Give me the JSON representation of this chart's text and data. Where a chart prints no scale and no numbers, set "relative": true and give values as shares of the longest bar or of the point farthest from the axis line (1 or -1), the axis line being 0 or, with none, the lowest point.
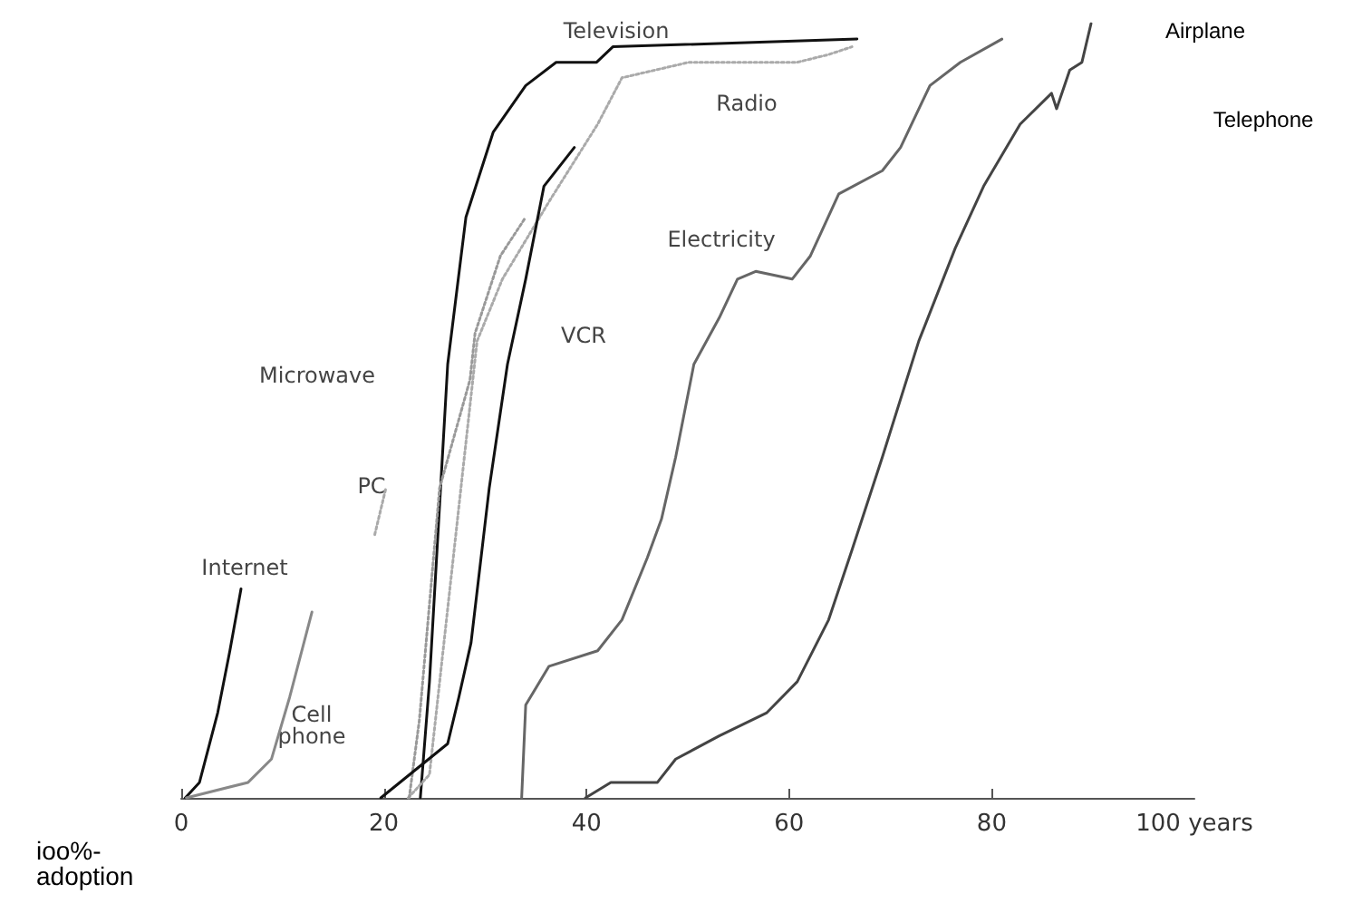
{
  "chart_data": {
    "type": "line",
    "relative": true,
    "xlabel": null,
    "ylabel": "ioo%-\nadoption",
    "xlim": [
      0,
      100
    ],
    "xticks": [
      {
        "value": 0,
        "label": "0"
      },
      20,
      40,
      60,
      80,
      {
        "value": 100,
        "label": "100 years"
      }
    ],
    "grid": false,
    "marker": "none",
    "series": [
      {
        "color": "#111111",
        "line_style": "solid",
        "x": [
          23.6,
          24.5,
          26.3,
          28.1,
          30.8,
          34,
          37,
          41,
          42.6,
          66.7
        ],
        "values": [
          0,
          0.15,
          0.56,
          0.75,
          0.86,
          0.92,
          0.95,
          0.95,
          0.97,
          0.98
        ]
      },
      {
        "color": "#aaaaaa",
        "line_style": "dotted",
        "x": [
          22.4,
          24.5,
          29.2,
          31.7,
          36.3,
          41.1,
          43.5,
          50.1,
          56,
          60.8,
          63.9,
          66.2
        ],
        "values": [
          0,
          0.03,
          0.59,
          0.67,
          0.77,
          0.87,
          0.93,
          0.95,
          0.95,
          0.95,
          0.96,
          0.97
        ]
      },
      {
        "color": "#999999",
        "line_style": "dotted",
        "x": [
          22.5,
          23.5,
          25.5,
          28.5,
          29,
          31.5,
          34
        ],
        "values": [
          0,
          0.1,
          0.4,
          0.54,
          0.6,
          0.7,
          0.75
        ]
      },
      {
        "color": "#111111",
        "line_style": "solid",
        "x": [
          19.7,
          26.3,
          27.4,
          28.6,
          30.4,
          32.2,
          34,
          35.8,
          38.8
        ],
        "values": [
          0,
          0.07,
          0.13,
          0.2,
          0.4,
          0.56,
          0.67,
          0.79,
          0.84
        ]
      },
      {
        "color": "#aaaaaa",
        "line_style": "dotted",
        "x": [
          19.1,
          20.2
        ],
        "values": [
          0.34,
          0.4
        ]
      },
      {
        "color": "#111111",
        "line_style": "solid",
        "x": [
          0.4,
          1.8,
          3.6,
          4.8,
          5.9
        ],
        "values": [
          0,
          0.02,
          0.11,
          0.19,
          0.27
        ]
      },
      {
        "color": "#888888",
        "line_style": "solid",
        "x": [
          0.5,
          6.6,
          8.9,
          10.7,
          12.9
        ],
        "values": [
          0,
          0.02,
          0.05,
          0.13,
          0.24
        ]
      },
      {
        "color": "#666666",
        "line_style": "solid",
        "x": [
          33.6,
          34,
          36.3,
          41.1,
          43.5,
          46,
          47.4,
          48.8,
          50.6,
          53.1,
          54.9,
          56.7,
          60.3,
          62.1,
          64.9,
          69.2,
          71,
          73.9,
          76.9,
          81
        ],
        "values": [
          0,
          0.12,
          0.17,
          0.19,
          0.23,
          0.31,
          0.36,
          0.44,
          0.56,
          0.62,
          0.67,
          0.68,
          0.67,
          0.7,
          0.78,
          0.81,
          0.84,
          0.92,
          0.95,
          0.98
        ]
      },
      {
        "color": "#444444",
        "line_style": "solid",
        "x": [
          39.9,
          42.4,
          47,
          48.8,
          53.1,
          57.8,
          60.8,
          63.9,
          66.2,
          69.2,
          72.8,
          76.4,
          79.2,
          82.8,
          85.9,
          86.4,
          87.7,
          88.9,
          89.8
        ],
        "values": [
          0,
          0.02,
          0.02,
          0.05,
          0.08,
          0.11,
          0.15,
          0.23,
          0.32,
          0.44,
          0.59,
          0.71,
          0.79,
          0.87,
          0.91,
          0.89,
          0.94,
          0.95,
          1
        ]
      }
    ],
    "annotations": [
      "Television",
      "Radio",
      "Electricity",
      "VCR",
      "Microwave",
      "PC",
      "Internet",
      "Cell\nphone",
      "Airplane",
      "Telephone"
    ]
  }
}
